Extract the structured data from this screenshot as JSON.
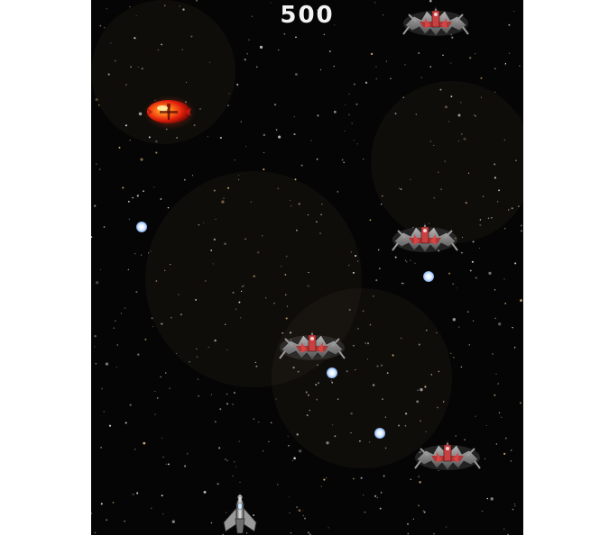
{
  "hud": {
    "score": "500"
  },
  "colors": {
    "background": "#050505",
    "enemy_accent": "#b23030",
    "enemy_metal": "#8a8a8a",
    "power_up": "#e02a10",
    "bullet": "#cfe4ff",
    "player_metal": "#b9b9b9"
  },
  "sprites": {
    "enemy": "spider-fighter-enemy",
    "power_up": "red-orb-power-up",
    "bullet": "enemy-energy-bullet",
    "player": "player-starfighter"
  }
}
